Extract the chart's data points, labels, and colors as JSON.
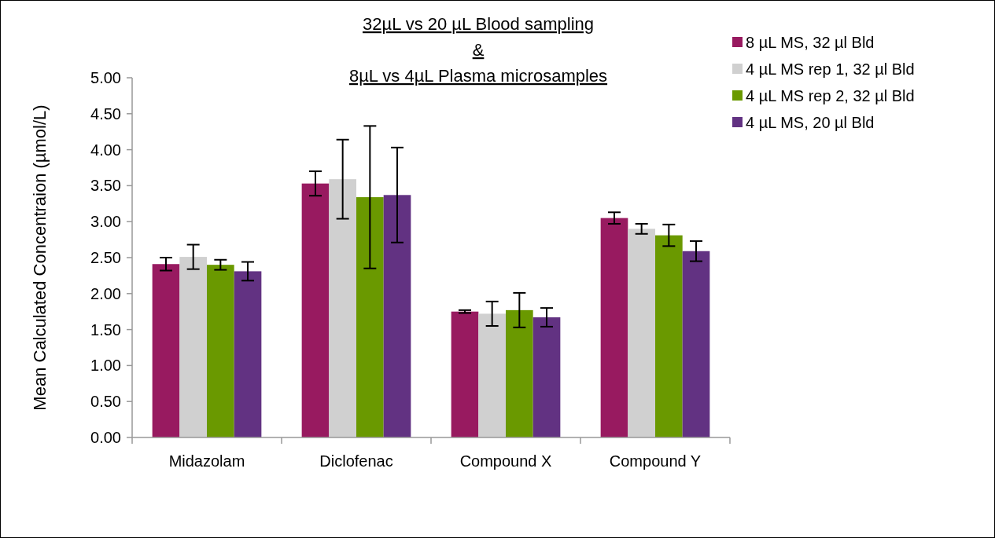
{
  "chart_data": {
    "type": "bar",
    "title": "32µL vs 20 µL Blood sampling\n&\n8µL vs 4µL Plasma microsamples",
    "ylabel": "Mean Calculated Concentraion (µmol/L)",
    "categories": [
      "Midazolam",
      "Diclofenac",
      "Compound X",
      "Compound Y"
    ],
    "series": [
      {
        "name": "8 µL MS, 32 µl Bld",
        "color": "#981a60",
        "values": [
          2.41,
          3.53,
          1.75,
          3.05
        ],
        "errors": [
          0.09,
          0.17,
          0.02,
          0.08
        ]
      },
      {
        "name": "4 µL MS rep 1, 32 µl Bld",
        "color": "#d0d0d0",
        "values": [
          2.51,
          3.59,
          1.72,
          2.9
        ],
        "errors": [
          0.17,
          0.55,
          0.17,
          0.07
        ]
      },
      {
        "name": "4 µL MS rep 2, 32 µl Bld",
        "color": "#6a9900",
        "values": [
          2.4,
          3.34,
          1.77,
          2.81
        ],
        "errors": [
          0.07,
          0.99,
          0.24,
          0.15
        ]
      },
      {
        "name": "4 µL MS, 20 µl Bld",
        "color": "#623282",
        "values": [
          2.31,
          3.37,
          1.67,
          2.59
        ],
        "errors": [
          0.13,
          0.66,
          0.13,
          0.14
        ]
      }
    ],
    "ylim": [
      0,
      5
    ],
    "yticks": [
      {
        "value": 0,
        "label": "0.00"
      },
      {
        "value": 0.5,
        "label": "0.50"
      },
      {
        "value": 1,
        "label": "1.00"
      },
      {
        "value": 1.5,
        "label": "1.50"
      },
      {
        "value": 2,
        "label": "2.00"
      },
      {
        "value": 2.5,
        "label": "2.50"
      },
      {
        "value": 3,
        "label": "3.00"
      },
      {
        "value": 3.5,
        "label": "3.50"
      },
      {
        "value": 4,
        "label": "4.00"
      },
      {
        "value": 4.5,
        "label": "4.50"
      },
      {
        "value": 5,
        "label": "5.00"
      }
    ],
    "legend": "top right",
    "grid": false
  }
}
